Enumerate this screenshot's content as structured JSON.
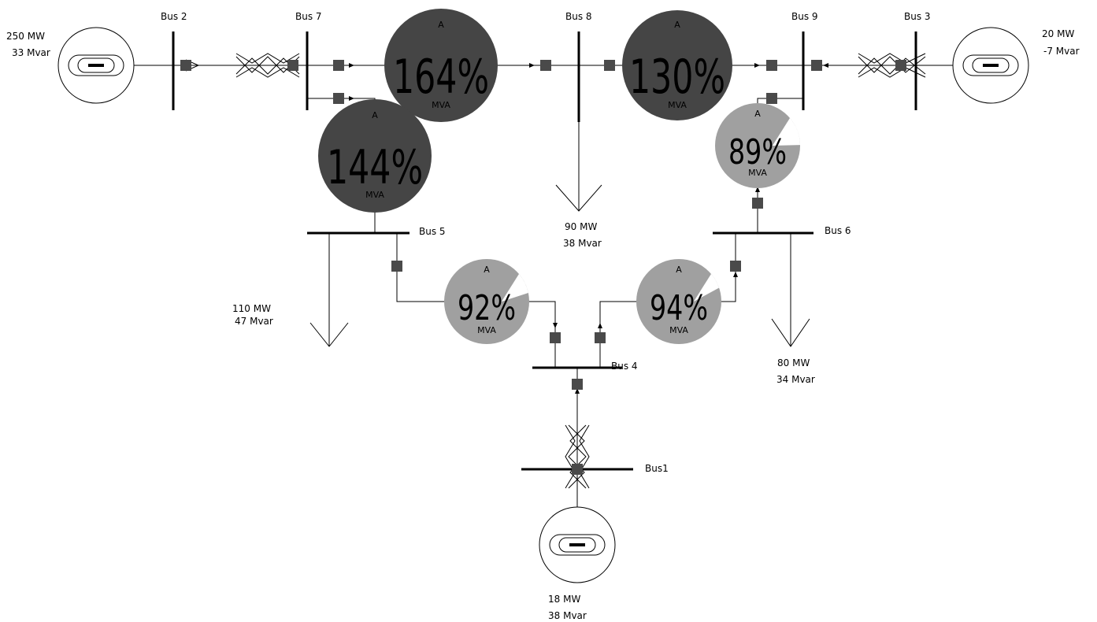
{
  "buses": {
    "bus1": "Bus1",
    "bus2": "Bus 2",
    "bus3": "Bus 3",
    "bus4": "Bus 4",
    "bus5": "Bus 5",
    "bus6": "Bus 6",
    "bus7": "Bus 7",
    "bus8": "Bus 8",
    "bus9": "Bus 9"
  },
  "generators": {
    "gen2": {
      "mw": "250 MW",
      "mvar": "33 Mvar"
    },
    "gen3": {
      "mw": "20 MW",
      "mvar": "-7 Mvar"
    },
    "gen1": {
      "mw": "18 MW",
      "mvar": "38 Mvar"
    }
  },
  "loads": {
    "load5": {
      "mw": "110 MW",
      "mvar": "47 Mvar"
    },
    "load6": {
      "mw": "80 MW",
      "mvar": "34 Mvar"
    },
    "load8": {
      "mw": "90 MW",
      "mvar": "38 Mvar"
    }
  },
  "pies": {
    "line78": {
      "top": "A",
      "pct": "164%",
      "unit": "MVA",
      "loading": 1.64,
      "color": "#454545"
    },
    "line89": {
      "top": "A",
      "pct": "130%",
      "unit": "MVA",
      "loading": 1.3,
      "color": "#454545"
    },
    "line75": {
      "top": "A",
      "pct": "144%",
      "unit": "MVA",
      "loading": 1.44,
      "color": "#454545"
    },
    "line96": {
      "top": "A",
      "pct": "89%",
      "unit": "MVA",
      "loading": 0.89,
      "color": "#a0a0a0"
    },
    "line54": {
      "top": "A",
      "pct": "92%",
      "unit": "MVA",
      "loading": 0.92,
      "color": "#a0a0a0"
    },
    "line64": {
      "top": "A",
      "pct": "94%",
      "unit": "MVA",
      "loading": 0.94,
      "color": "#a0a0a0"
    }
  }
}
